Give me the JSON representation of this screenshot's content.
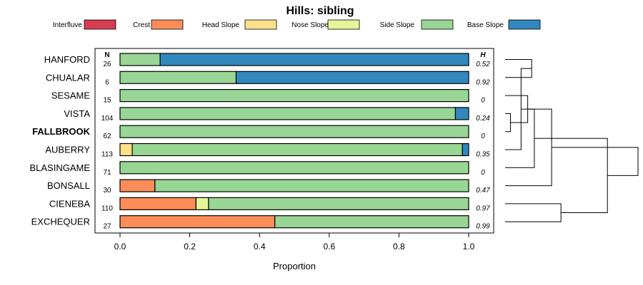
{
  "chart_data": {
    "type": "bar",
    "stacked": true,
    "orientation": "horizontal",
    "title": "Hills: sibling",
    "xlabel": "Proportion",
    "xlim": [
      0,
      1
    ],
    "xticks": [
      "0.0",
      "0.2",
      "0.4",
      "0.6",
      "0.8",
      "1.0"
    ],
    "n_header": "N",
    "h_header": "H",
    "legend": [
      {
        "name": "Interfluve",
        "color": "#D53E4F"
      },
      {
        "name": "Crest",
        "color": "#FC8D59"
      },
      {
        "name": "Head Slope",
        "color": "#FEE08B"
      },
      {
        "name": "Nose Slope",
        "color": "#E6F598"
      },
      {
        "name": "Side Slope",
        "color": "#99D594"
      },
      {
        "name": "Base Slope",
        "color": "#3288BD"
      }
    ],
    "rows": [
      {
        "name": "HANFORD",
        "bold": false,
        "n": "26",
        "h": "0.52",
        "values": [
          0,
          0,
          0,
          0,
          0.115,
          0.885
        ]
      },
      {
        "name": "CHUALAR",
        "bold": false,
        "n": "6",
        "h": "0.92",
        "values": [
          0,
          0,
          0,
          0,
          0.333,
          0.667
        ]
      },
      {
        "name": "SESAME",
        "bold": false,
        "n": "15",
        "h": "0",
        "values": [
          0,
          0,
          0,
          0,
          1.0,
          0
        ]
      },
      {
        "name": "VISTA",
        "bold": false,
        "n": "104",
        "h": "0.24",
        "values": [
          0,
          0,
          0,
          0,
          0.962,
          0.038
        ]
      },
      {
        "name": "FALLBROOK",
        "bold": true,
        "n": "62",
        "h": "0",
        "values": [
          0,
          0,
          0,
          0,
          1.0,
          0
        ]
      },
      {
        "name": "AUBERRY",
        "bold": false,
        "n": "113",
        "h": "0.35",
        "values": [
          0,
          0,
          0.035,
          0,
          0.947,
          0.018
        ]
      },
      {
        "name": "BLASINGAME",
        "bold": false,
        "n": "71",
        "h": "0",
        "values": [
          0,
          0,
          0,
          0,
          1.0,
          0
        ]
      },
      {
        "name": "BONSALL",
        "bold": false,
        "n": "30",
        "h": "0.47",
        "values": [
          0,
          0.1,
          0,
          0,
          0.9,
          0
        ]
      },
      {
        "name": "CIENEBA",
        "bold": false,
        "n": "110",
        "h": "0.97",
        "values": [
          0,
          0.218,
          0,
          0.036,
          0.746,
          0
        ]
      },
      {
        "name": "EXCHEQUER",
        "bold": false,
        "n": "27",
        "h": "0.99",
        "values": [
          0,
          0.444,
          0,
          0,
          0.556,
          0
        ]
      }
    ],
    "dendrogram": {
      "description": "hierarchical clustering of series rows",
      "merges": [
        [
          0,
          1,
          0.2
        ],
        [
          3,
          4,
          0.04
        ],
        [
          10,
          5,
          0.12
        ],
        [
          11,
          2,
          0.17
        ],
        [
          12,
          6,
          0.22
        ],
        [
          8,
          9,
          0.42
        ],
        [
          13,
          7,
          0.35
        ],
        [
          14,
          15,
          0.77
        ],
        [
          16,
          17,
          1.0
        ]
      ]
    }
  }
}
